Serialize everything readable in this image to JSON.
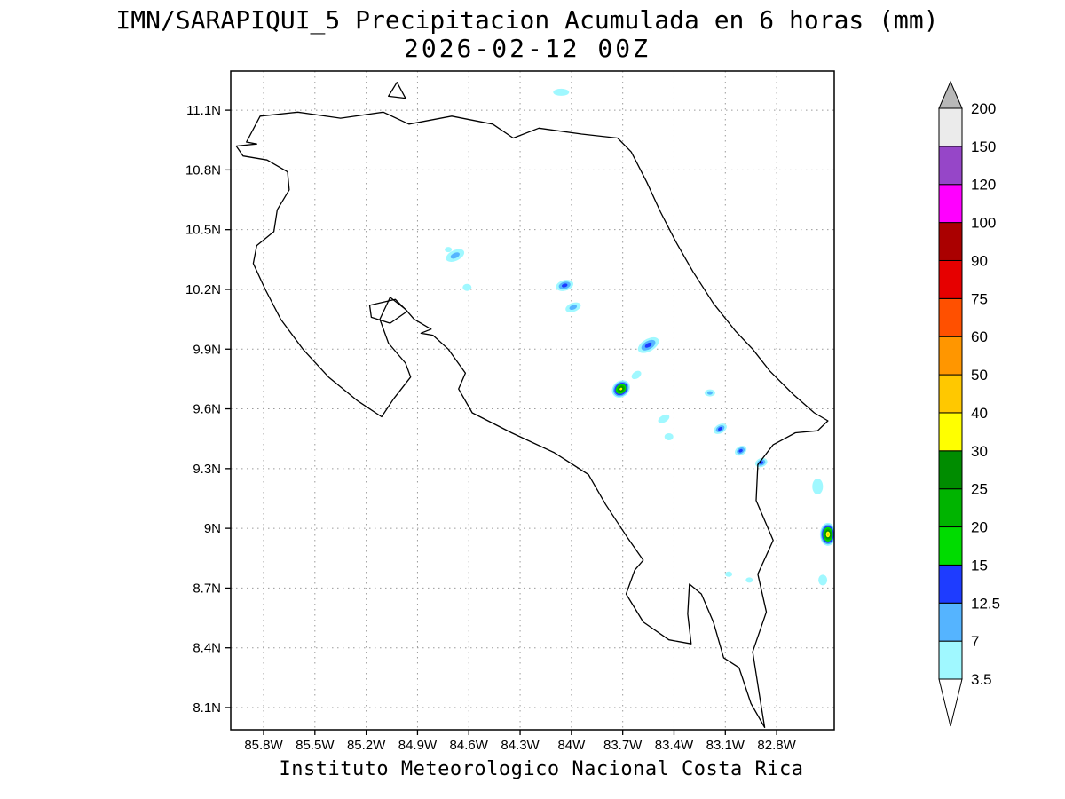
{
  "title": {
    "line1": "IMN/SARAPIQUI_5 Precipitacion Acumulada en 6 horas (mm)",
    "line2": "2026-02-12 00Z"
  },
  "footer": "Instituto Meteorologico Nacional Costa Rica",
  "chart_data": {
    "type": "heatmap",
    "title": "IMN/SARAPIQUI_5 Precipitacion Acumulada en 6 horas (mm)",
    "subtitle": "2026-02-12 00Z",
    "caption": "Instituto Meteorologico Nacional Costa Rica",
    "projection": "lat/lon map of Costa Rica",
    "grid": true,
    "lon_range": [
      -85.99,
      -82.46
    ],
    "lat_range": [
      7.99,
      11.3
    ],
    "x_axis": {
      "ticks": [
        {
          "lon": -85.8,
          "label": "85.8W"
        },
        {
          "lon": -85.5,
          "label": "85.5W"
        },
        {
          "lon": -85.2,
          "label": "85.2W"
        },
        {
          "lon": -84.9,
          "label": "84.9W"
        },
        {
          "lon": -84.6,
          "label": "84.6W"
        },
        {
          "lon": -84.3,
          "label": "84.3W"
        },
        {
          "lon": -84.0,
          "label": "84W"
        },
        {
          "lon": -83.7,
          "label": "83.7W"
        },
        {
          "lon": -83.4,
          "label": "83.4W"
        },
        {
          "lon": -83.1,
          "label": "83.1W"
        },
        {
          "lon": -82.8,
          "label": "82.8W"
        }
      ]
    },
    "y_axis": {
      "ticks": [
        {
          "lat": 8.1,
          "label": "8.1N"
        },
        {
          "lat": 8.4,
          "label": "8.4N"
        },
        {
          "lat": 8.7,
          "label": "8.7N"
        },
        {
          "lat": 9.0,
          "label": "9N"
        },
        {
          "lat": 9.3,
          "label": "9.3N"
        },
        {
          "lat": 9.6,
          "label": "9.6N"
        },
        {
          "lat": 9.9,
          "label": "9.9N"
        },
        {
          "lat": 10.2,
          "label": "10.2N"
        },
        {
          "lat": 10.5,
          "label": "10.5N"
        },
        {
          "lat": 10.8,
          "label": "10.8N"
        },
        {
          "lat": 11.1,
          "label": "11.1N"
        }
      ]
    },
    "colorbar": {
      "units": "mm",
      "levels": [
        3.5,
        7,
        12.5,
        15,
        20,
        25,
        30,
        40,
        50,
        60,
        75,
        90,
        100,
        120,
        150,
        200
      ],
      "labels": [
        "3.5",
        "7",
        "12.5",
        "15",
        "20",
        "25",
        "30",
        "40",
        "50",
        "60",
        "75",
        "90",
        "100",
        "120",
        "150",
        "200"
      ],
      "colors": [
        "#ffffff",
        "#a0f8ff",
        "#55b4ff",
        "#1e3cff",
        "#00dc00",
        "#00b400",
        "#008c00",
        "#ffff00",
        "#ffc800",
        "#ff9600",
        "#ff5000",
        "#e60000",
        "#aa0000",
        "#ff00ff",
        "#9646c8",
        "#ebebeb",
        "#b8b8b8"
      ]
    },
    "cells": [
      {
        "lon": -84.06,
        "lat": 11.19,
        "v": 5,
        "rx": 9,
        "ry": 4
      },
      {
        "lon": -84.72,
        "lat": 10.4,
        "v": 5,
        "rx": 4,
        "ry": 3
      },
      {
        "lon": -84.68,
        "lat": 10.37,
        "v": 9,
        "rx": 11,
        "ry": 6,
        "rot": -25
      },
      {
        "lon": -84.61,
        "lat": 10.21,
        "v": 5,
        "rx": 5,
        "ry": 4
      },
      {
        "lon": -84.04,
        "lat": 10.22,
        "v": 13.5,
        "rx": 10,
        "ry": 6,
        "rot": -15
      },
      {
        "lon": -83.99,
        "lat": 10.11,
        "v": 9,
        "rx": 9,
        "ry": 5,
        "rot": -20
      },
      {
        "lon": -83.55,
        "lat": 9.92,
        "v": 13.5,
        "rx": 13,
        "ry": 7,
        "rot": -30
      },
      {
        "lon": -83.62,
        "lat": 9.77,
        "v": 5,
        "rx": 6,
        "ry": 4,
        "rot": -35
      },
      {
        "lon": -83.71,
        "lat": 9.7,
        "v": 32,
        "rx": 11,
        "ry": 9,
        "rot": -40
      },
      {
        "lon": -83.19,
        "lat": 9.68,
        "v": 9,
        "rx": 6,
        "ry": 4
      },
      {
        "lon": -83.46,
        "lat": 9.55,
        "v": 5,
        "rx": 7,
        "ry": 4,
        "rot": -30
      },
      {
        "lon": -83.43,
        "lat": 9.46,
        "v": 5,
        "rx": 5,
        "ry": 4
      },
      {
        "lon": -83.13,
        "lat": 9.5,
        "v": 13.5,
        "rx": 8,
        "ry": 5,
        "rot": -30
      },
      {
        "lon": -83.01,
        "lat": 9.39,
        "v": 13.5,
        "rx": 7,
        "ry": 5,
        "rot": -30
      },
      {
        "lon": -82.89,
        "lat": 9.33,
        "v": 13.5,
        "rx": 7,
        "ry": 5,
        "rot": -20
      },
      {
        "lon": -82.56,
        "lat": 9.21,
        "v": 5,
        "rx": 6,
        "ry": 9
      },
      {
        "lon": -82.5,
        "lat": 8.97,
        "v": 42,
        "rx": 9,
        "ry": 13
      },
      {
        "lon": -83.08,
        "lat": 8.77,
        "v": 4,
        "rx": 4,
        "ry": 3
      },
      {
        "lon": -82.96,
        "lat": 8.74,
        "v": 4,
        "rx": 4,
        "ry": 3
      },
      {
        "lon": -82.53,
        "lat": 8.74,
        "v": 5,
        "rx": 5,
        "ry": 6
      }
    ],
    "outlines": [
      {
        "name": "costa-rica-mainland",
        "closed": true,
        "pts": [
          [
            -85.9,
            10.94
          ],
          [
            -85.82,
            11.07
          ],
          [
            -85.6,
            11.09
          ],
          [
            -85.35,
            11.06
          ],
          [
            -85.1,
            11.09
          ],
          [
            -84.95,
            11.03
          ],
          [
            -84.7,
            11.07
          ],
          [
            -84.46,
            11.03
          ],
          [
            -84.34,
            10.96
          ],
          [
            -84.19,
            11.01
          ],
          [
            -83.94,
            10.98
          ],
          [
            -83.73,
            10.96
          ],
          [
            -83.65,
            10.89
          ],
          [
            -83.56,
            10.74
          ],
          [
            -83.48,
            10.59
          ],
          [
            -83.39,
            10.44
          ],
          [
            -83.29,
            10.29
          ],
          [
            -83.17,
            10.13
          ],
          [
            -83.04,
            9.99
          ],
          [
            -82.94,
            9.9
          ],
          [
            -82.84,
            9.79
          ],
          [
            -82.7,
            9.67
          ],
          [
            -82.58,
            9.58
          ],
          [
            -82.5,
            9.54
          ],
          [
            -82.56,
            9.49
          ],
          [
            -82.69,
            9.48
          ],
          [
            -82.82,
            9.42
          ],
          [
            -82.91,
            9.32
          ],
          [
            -82.92,
            9.14
          ],
          [
            -82.82,
            8.94
          ],
          [
            -82.91,
            8.77
          ],
          [
            -82.86,
            8.58
          ],
          [
            -82.94,
            8.38
          ],
          [
            -82.9,
            8.16
          ],
          [
            -82.87,
            8.0
          ],
          [
            -82.95,
            8.12
          ],
          [
            -83.02,
            8.3
          ],
          [
            -83.11,
            8.35
          ],
          [
            -83.17,
            8.53
          ],
          [
            -83.24,
            8.67
          ],
          [
            -83.31,
            8.72
          ],
          [
            -83.32,
            8.57
          ],
          [
            -83.3,
            8.42
          ],
          [
            -83.43,
            8.44
          ],
          [
            -83.58,
            8.53
          ],
          [
            -83.68,
            8.67
          ],
          [
            -83.63,
            8.79
          ],
          [
            -83.58,
            8.84
          ],
          [
            -83.67,
            8.95
          ],
          [
            -83.8,
            9.12
          ],
          [
            -83.9,
            9.27
          ],
          [
            -84.1,
            9.38
          ],
          [
            -84.35,
            9.48
          ],
          [
            -84.58,
            9.58
          ],
          [
            -84.66,
            9.7
          ],
          [
            -84.62,
            9.78
          ],
          [
            -84.72,
            9.9
          ],
          [
            -84.81,
            9.97
          ],
          [
            -84.88,
            9.98
          ],
          [
            -84.82,
            10.0
          ],
          [
            -84.92,
            10.05
          ],
          [
            -84.97,
            10.1
          ],
          [
            -85.06,
            10.16
          ],
          [
            -85.12,
            10.05
          ],
          [
            -85.07,
            9.93
          ],
          [
            -84.97,
            9.83
          ],
          [
            -84.94,
            9.76
          ],
          [
            -85.04,
            9.65
          ],
          [
            -85.11,
            9.56
          ],
          [
            -85.25,
            9.64
          ],
          [
            -85.42,
            9.76
          ],
          [
            -85.57,
            9.9
          ],
          [
            -85.7,
            10.05
          ],
          [
            -85.79,
            10.2
          ],
          [
            -85.86,
            10.33
          ],
          [
            -85.84,
            10.42
          ],
          [
            -85.74,
            10.49
          ],
          [
            -85.72,
            10.6
          ],
          [
            -85.65,
            10.7
          ],
          [
            -85.66,
            10.79
          ],
          [
            -85.78,
            10.85
          ],
          [
            -85.92,
            10.87
          ],
          [
            -85.96,
            10.92
          ],
          [
            -85.84,
            10.93
          ]
        ]
      },
      {
        "name": "isla-chira",
        "closed": true,
        "pts": [
          [
            -85.18,
            10.12
          ],
          [
            -85.03,
            10.15
          ],
          [
            -84.96,
            10.09
          ],
          [
            -85.06,
            10.03
          ],
          [
            -85.17,
            10.06
          ]
        ]
      },
      {
        "name": "lake-island",
        "closed": true,
        "pts": [
          [
            -85.02,
            11.24
          ],
          [
            -84.97,
            11.16
          ],
          [
            -85.07,
            11.17
          ]
        ]
      }
    ]
  }
}
